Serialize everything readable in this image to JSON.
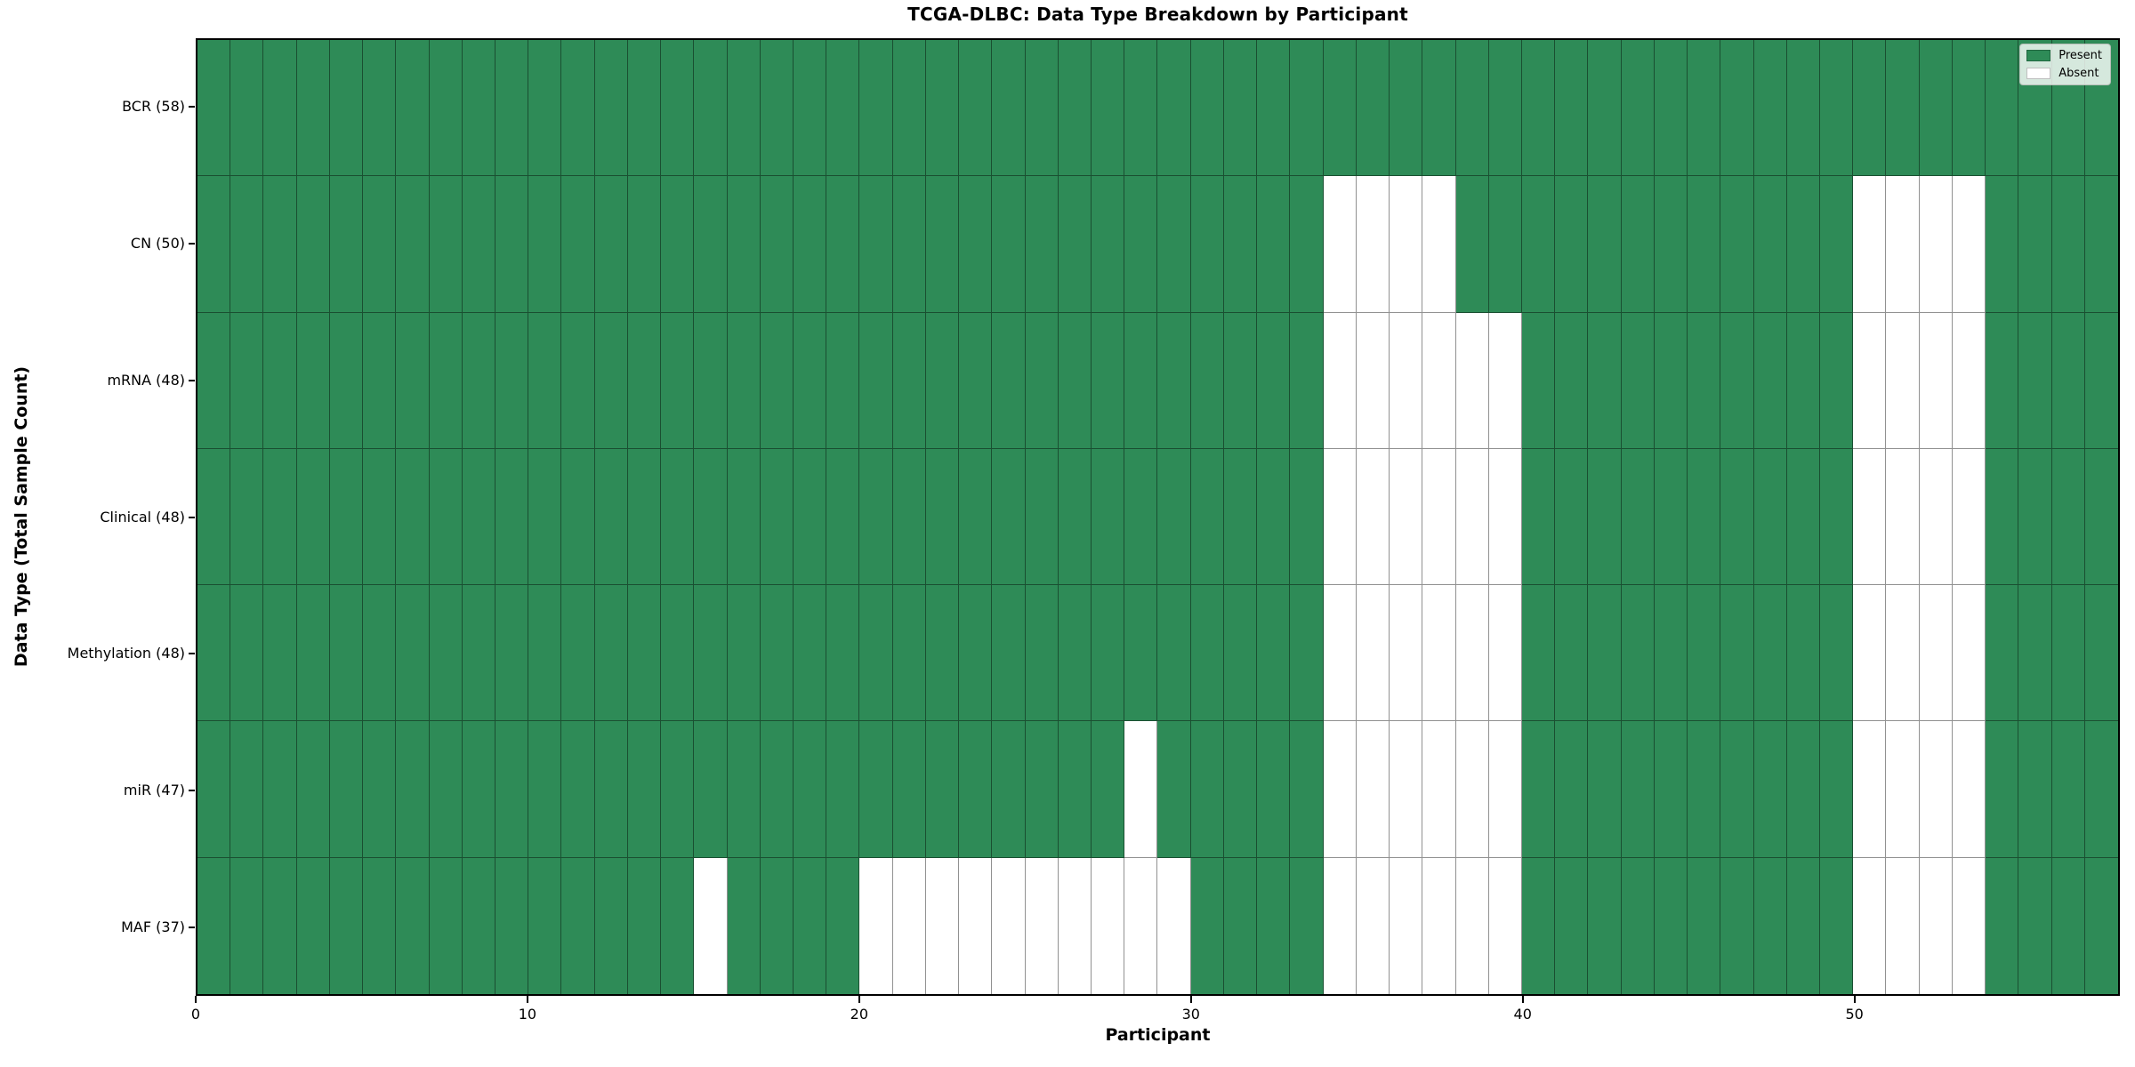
{
  "chart_data": {
    "type": "heatmap",
    "title": "TCGA-DLBC: Data Type Breakdown by Participant",
    "xlabel": "Participant",
    "ylabel": "Data Type (Total Sample Count)",
    "n_participants": 58,
    "x_axis_range": [
      0,
      58
    ],
    "x_ticks": [
      0,
      10,
      20,
      30,
      40,
      50
    ],
    "grid": "cell borders on",
    "legend_position": "upper right",
    "colors": {
      "present": "#2e8b57",
      "absent": "#ffffff",
      "grid_line": "rgba(0,0,0,0.43)",
      "spine": "#000000"
    },
    "legend": [
      {
        "label": "Present",
        "color": "#2e8b57"
      },
      {
        "label": "Absent",
        "color": "#ffffff"
      }
    ],
    "rows": [
      {
        "label": "BCR (58)",
        "data_type": "BCR",
        "total_count": 58,
        "absent_participants": []
      },
      {
        "label": "CN (50)",
        "data_type": "CN",
        "total_count": 50,
        "absent_participants": [
          34,
          35,
          36,
          37,
          50,
          51,
          52,
          53
        ]
      },
      {
        "label": "mRNA (48)",
        "data_type": "mRNA",
        "total_count": 48,
        "absent_participants": [
          34,
          35,
          36,
          37,
          38,
          39,
          50,
          51,
          52,
          53
        ]
      },
      {
        "label": "Clinical (48)",
        "data_type": "Clinical",
        "total_count": 48,
        "absent_participants": [
          34,
          35,
          36,
          37,
          38,
          39,
          50,
          51,
          52,
          53
        ]
      },
      {
        "label": "Methylation (48)",
        "data_type": "Methylation",
        "total_count": 48,
        "absent_participants": [
          34,
          35,
          36,
          37,
          38,
          39,
          50,
          51,
          52,
          53
        ]
      },
      {
        "label": "miR (47)",
        "data_type": "miR",
        "total_count": 47,
        "absent_participants": [
          28,
          34,
          35,
          36,
          37,
          38,
          39,
          50,
          51,
          52,
          53
        ]
      },
      {
        "label": "MAF (37)",
        "data_type": "MAF",
        "total_count": 37,
        "absent_participants": [
          15,
          20,
          21,
          22,
          23,
          24,
          25,
          26,
          27,
          28,
          29,
          34,
          35,
          36,
          37,
          38,
          39,
          50,
          51,
          52,
          53
        ]
      }
    ]
  }
}
